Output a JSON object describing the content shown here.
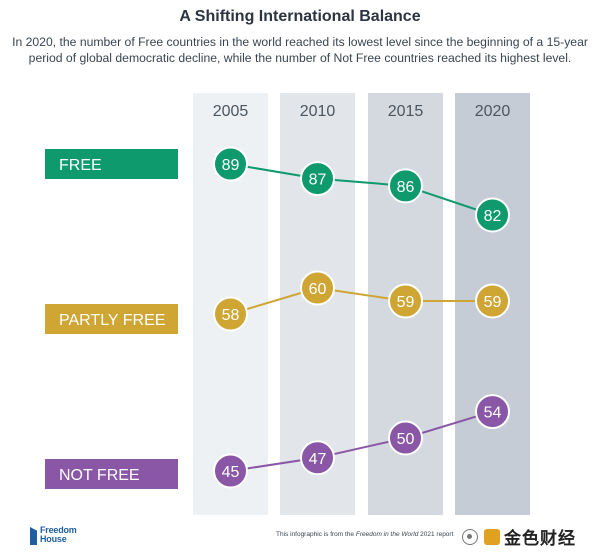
{
  "title": "A Shifting International Balance",
  "subtitle": "In 2020, the number of Free countries in the world reached its lowest level since the beginning of a 15-year period of global democratic decline, while the number of Not Free countries reached its highest level.",
  "footer": {
    "logo_line1": "Freedom",
    "logo_line2": "House",
    "note_prefix": "This infographic is from the ",
    "note_italic": "Freedom in the World",
    "note_suffix": " 2021 report",
    "watermark": "金色财经"
  },
  "colors": {
    "free": "#0e9a6c",
    "partly_free": "#cfa534",
    "not_free": "#8a57a6",
    "column_bg": [
      "#eef1f4",
      "#e2e6eb",
      "#d4d9e0",
      "#c6ccd5"
    ]
  },
  "chart_data": {
    "type": "line",
    "categories": [
      "2005",
      "2010",
      "2015",
      "2020"
    ],
    "series": [
      {
        "name": "FREE",
        "values": [
          89,
          87,
          86,
          82
        ]
      },
      {
        "name": "PARTLY FREE",
        "values": [
          58,
          60,
          59,
          59
        ]
      },
      {
        "name": "NOT FREE",
        "values": [
          45,
          47,
          50,
          54
        ]
      }
    ],
    "title": "A Shifting International Balance",
    "legend": "left"
  }
}
